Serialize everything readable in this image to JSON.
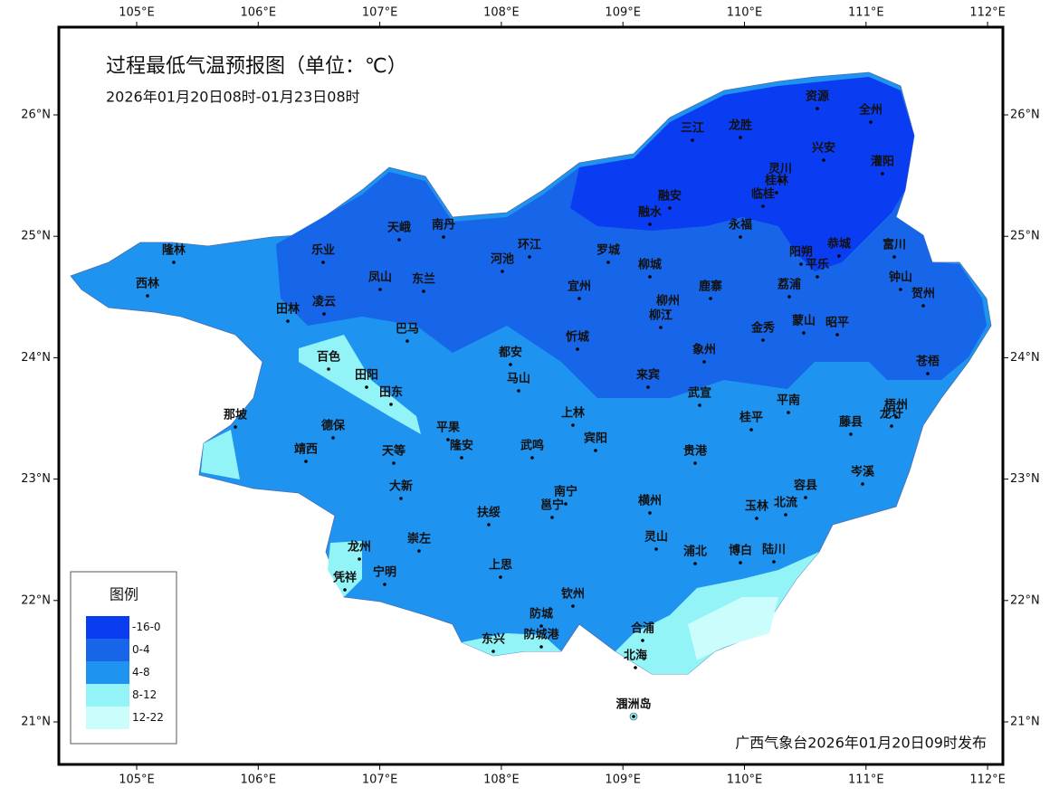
{
  "map": {
    "title": "过程最低气温预报图（单位：℃）",
    "subtitle": "2026年01月20日08时-01月23日08时",
    "footer": "广西气象台2026年01月20日09时发布",
    "longitude_ticks": [
      {
        "value": 105,
        "label": "105°E"
      },
      {
        "value": 106,
        "label": "106°E"
      },
      {
        "value": 107,
        "label": "107°E"
      },
      {
        "value": 108,
        "label": "108°E"
      },
      {
        "value": 109,
        "label": "109°E"
      },
      {
        "value": 110,
        "label": "110°E"
      },
      {
        "value": 111,
        "label": "111°E"
      },
      {
        "value": 112,
        "label": "112°E"
      }
    ],
    "latitude_ticks": [
      {
        "value": 26,
        "label": "26°N"
      },
      {
        "value": 25,
        "label": "25°N"
      },
      {
        "value": 24,
        "label": "24°N"
      },
      {
        "value": 23,
        "label": "23°N"
      },
      {
        "value": 22,
        "label": "22°N"
      },
      {
        "value": 21,
        "label": "21°N"
      }
    ],
    "legend": {
      "title": "图例",
      "items": [
        {
          "label": "-16-0",
          "color": "#0a3cf2"
        },
        {
          "label": "0-4",
          "color": "#1766ea"
        },
        {
          "label": "4-8",
          "color": "#1e93f0"
        },
        {
          "label": "8-12",
          "color": "#93f4f8"
        },
        {
          "label": "12-22",
          "color": "#ccfdfd"
        }
      ]
    },
    "cities": [
      "资源",
      "全州",
      "三江",
      "龙胜",
      "兴安",
      "灌阳",
      "灵川",
      "桂林",
      "临桂",
      "融安",
      "融水",
      "永福",
      "天峨",
      "南丹",
      "乐业",
      "环江",
      "河池",
      "罗城",
      "隆林",
      "恭城",
      "富川",
      "阳朔",
      "平乐",
      "西林",
      "凤山",
      "东兰",
      "柳城",
      "宜州",
      "鹿寨",
      "荔浦",
      "钟山",
      "贺州",
      "田林",
      "凌云",
      "柳州",
      "柳江",
      "金秀",
      "蒙山",
      "昭平",
      "巴马",
      "忻城",
      "象州",
      "百色",
      "都安",
      "苍梧",
      "田阳",
      "马山",
      "来宾",
      "田东",
      "武宣",
      "平南",
      "梧州",
      "那坡",
      "上林",
      "德保",
      "平果",
      "桂平",
      "藤县",
      "龙圩",
      "宾阳",
      "靖西",
      "天等",
      "隆安",
      "武鸣",
      "贵港",
      "岑溪",
      "大新",
      "容县",
      "南宁",
      "邕宁",
      "横州",
      "玉林",
      "北流",
      "扶绥",
      "崇左",
      "龙州",
      "灵山",
      "浦北",
      "博白",
      "陆川",
      "凭祥",
      "宁明",
      "上思",
      "钦州",
      "防城",
      "合浦",
      "防城港",
      "东兴",
      "北海",
      "涠洲岛"
    ]
  }
}
